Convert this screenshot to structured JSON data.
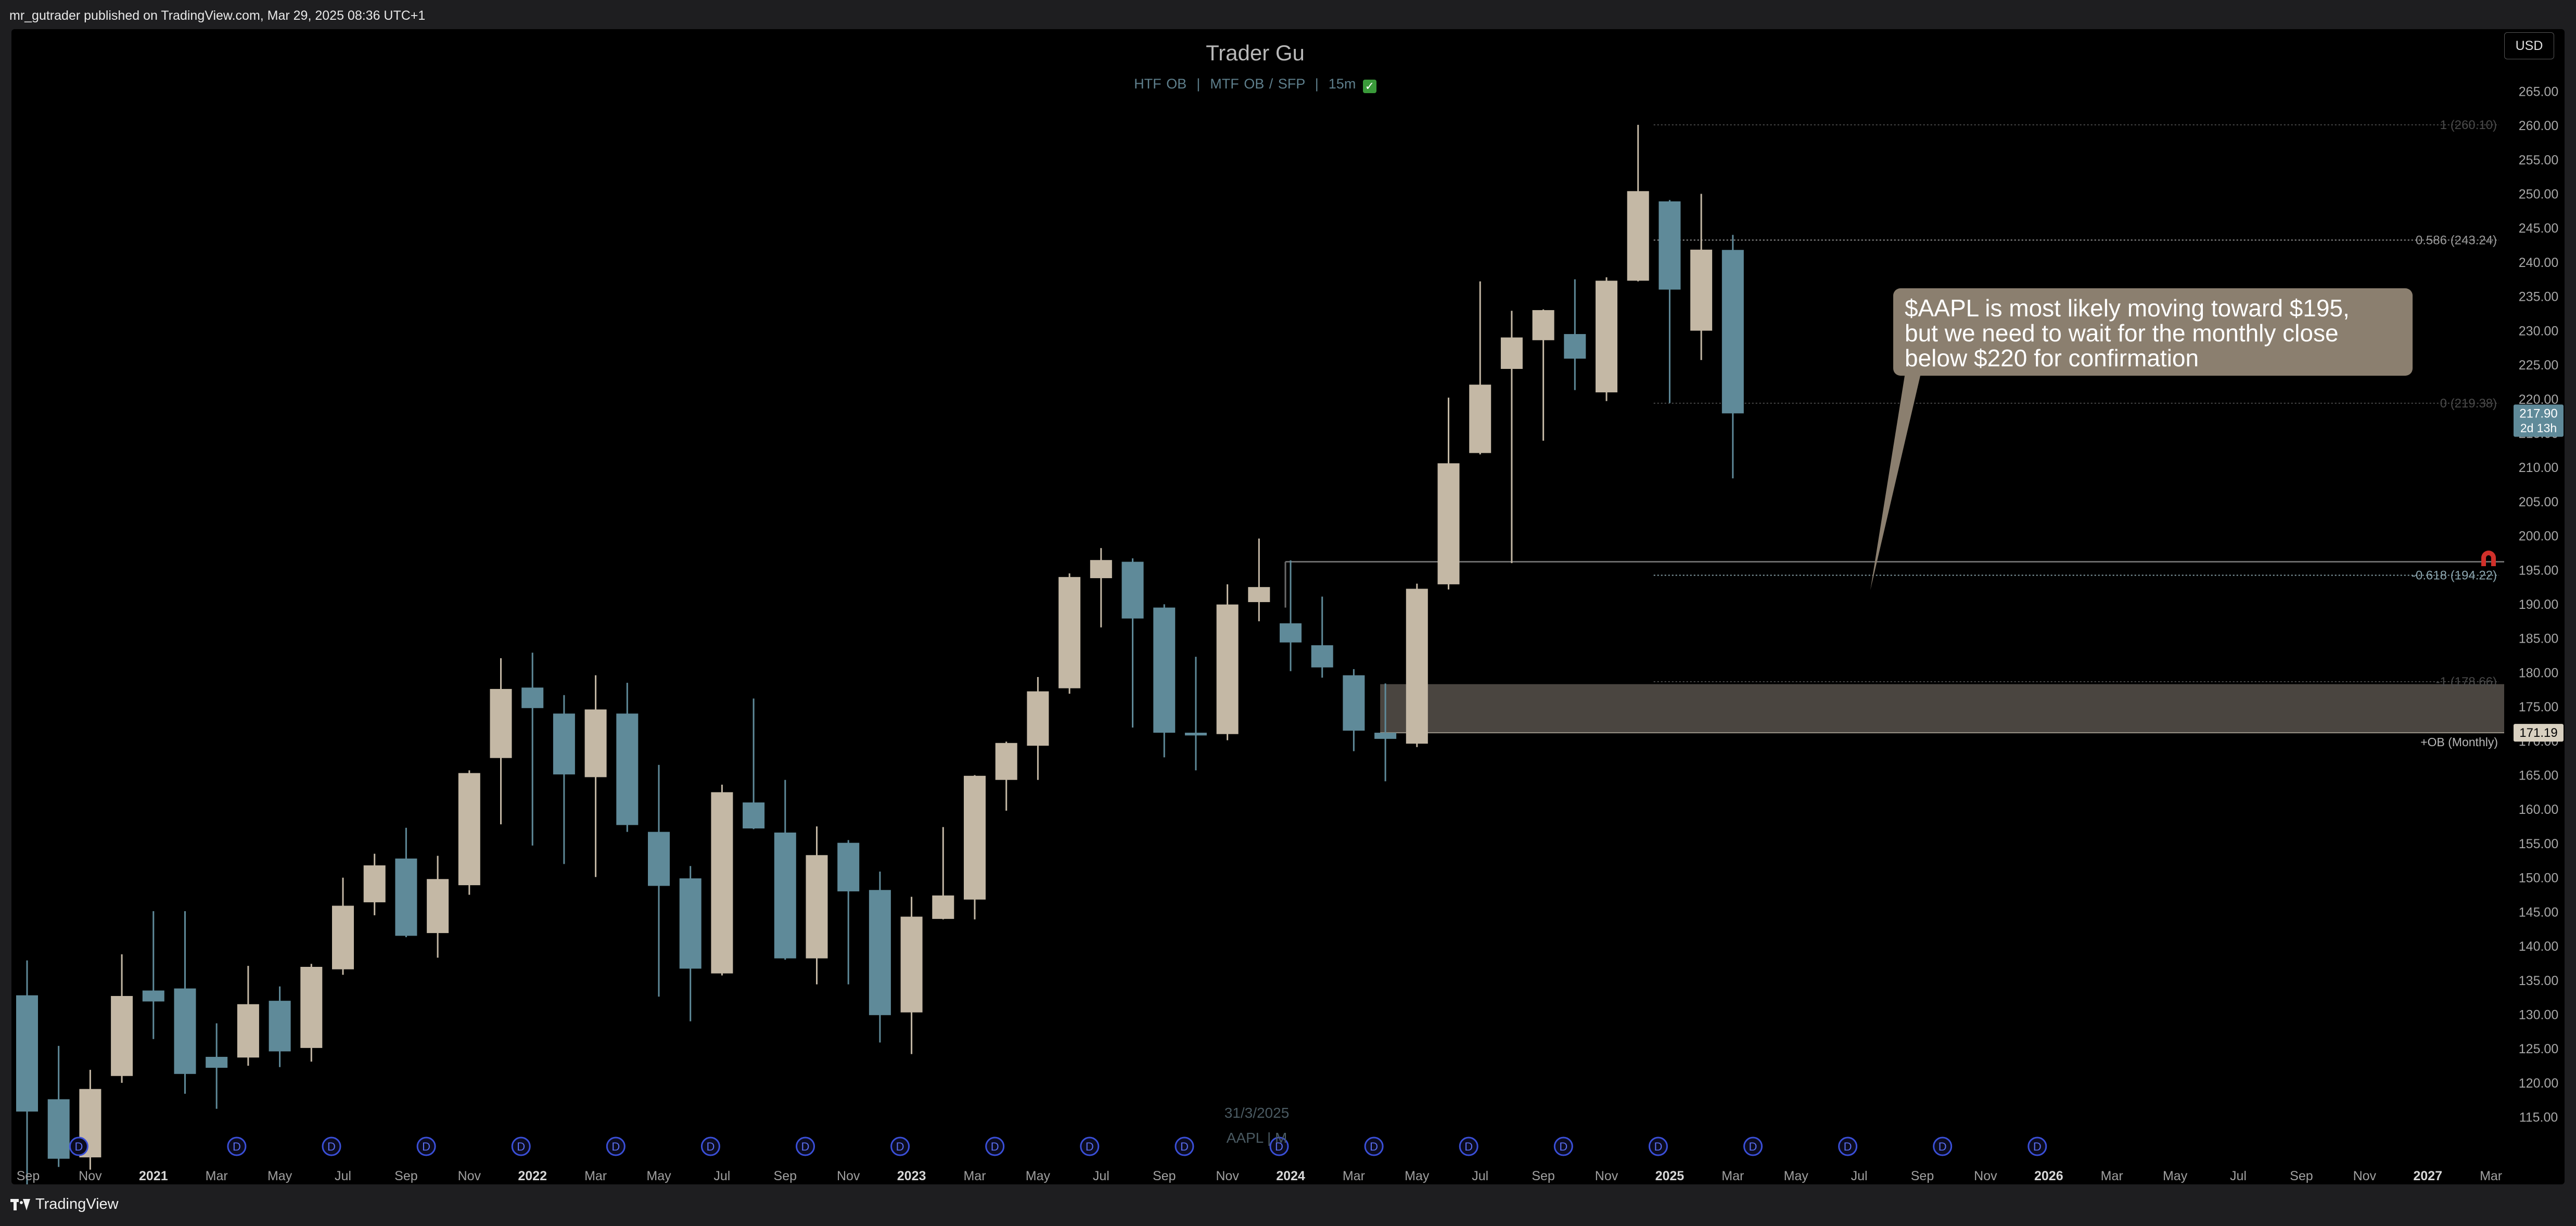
{
  "header": {
    "published_text": "mr_gutrader published on TradingView.com, Mar 29, 2025 08:36 UTC+1"
  },
  "chart": {
    "title": "Trader Gu",
    "subtitle_parts": [
      "HTF OB",
      "MTF OB / SFP",
      "15m"
    ],
    "separator": "|",
    "check_icon": "check-icon",
    "currency": "USD",
    "annotation_lines": [
      "$AAPL is most likely moving toward $195,",
      "but we need to wait for the monthly close",
      "below $220 for confirmation"
    ],
    "footer_date": "31/3/2025",
    "footer_symbol": "AAPL | M",
    "dividend_badge": "D",
    "colors": {
      "bull": "#c4b8a5",
      "bear": "#5f8a99",
      "zone": "#4a4540",
      "annotation": "#8b7f6f",
      "price_label": "#5f8a99"
    }
  },
  "footer": {
    "brand": "TradingView"
  },
  "chart_data": {
    "type": "candlestick",
    "symbol": "AAPL",
    "interval": "M",
    "ylim": [
      112,
      268
    ],
    "y_ticks": [
      115,
      120,
      125,
      130,
      135,
      140,
      145,
      150,
      155,
      160,
      165,
      170,
      175,
      180,
      185,
      190,
      195,
      200,
      205,
      210,
      215,
      220,
      225,
      230,
      235,
      240,
      245,
      250,
      255,
      260,
      265
    ],
    "x_labels": [
      {
        "i": 0,
        "text": "Sep"
      },
      {
        "i": 2,
        "text": "Nov"
      },
      {
        "i": 4,
        "text": "2021",
        "bold": true
      },
      {
        "i": 6,
        "text": "Mar"
      },
      {
        "i": 8,
        "text": "May"
      },
      {
        "i": 10,
        "text": "Jul"
      },
      {
        "i": 12,
        "text": "Sep"
      },
      {
        "i": 14,
        "text": "Nov"
      },
      {
        "i": 16,
        "text": "2022",
        "bold": true
      },
      {
        "i": 18,
        "text": "Mar"
      },
      {
        "i": 20,
        "text": "May"
      },
      {
        "i": 22,
        "text": "Jul"
      },
      {
        "i": 24,
        "text": "Sep"
      },
      {
        "i": 26,
        "text": "Nov"
      },
      {
        "i": 28,
        "text": "2023",
        "bold": true
      },
      {
        "i": 30,
        "text": "Mar"
      },
      {
        "i": 32,
        "text": "May"
      },
      {
        "i": 34,
        "text": "Jul"
      },
      {
        "i": 36,
        "text": "Sep"
      },
      {
        "i": 38,
        "text": "Nov"
      },
      {
        "i": 40,
        "text": "2024",
        "bold": true
      },
      {
        "i": 42,
        "text": "Mar"
      },
      {
        "i": 44,
        "text": "May"
      },
      {
        "i": 46,
        "text": "Jul"
      },
      {
        "i": 48,
        "text": "Sep"
      },
      {
        "i": 50,
        "text": "Nov"
      },
      {
        "i": 52,
        "text": "2025",
        "bold": true
      },
      {
        "i": 54,
        "text": "Mar"
      },
      {
        "i": 56,
        "text": "May"
      },
      {
        "i": 58,
        "text": "Jul"
      },
      {
        "i": 60,
        "text": "Sep"
      },
      {
        "i": 62,
        "text": "Nov"
      },
      {
        "i": 64,
        "text": "2026",
        "bold": true
      },
      {
        "i": 66,
        "text": "Mar"
      },
      {
        "i": 68,
        "text": "May"
      },
      {
        "i": 70,
        "text": "Jul"
      },
      {
        "i": 72,
        "text": "Sep"
      },
      {
        "i": 74,
        "text": "Nov"
      },
      {
        "i": 76,
        "text": "2027",
        "bold": true
      },
      {
        "i": 78,
        "text": "Mar"
      }
    ],
    "candles": [
      {
        "d": "2020-09",
        "o": 132.8,
        "h": 137.9,
        "l": 103.1,
        "c": 115.8
      },
      {
        "d": "2020-10",
        "o": 117.6,
        "h": 125.4,
        "l": 107.7,
        "c": 108.9
      },
      {
        "d": "2020-11",
        "o": 109.1,
        "h": 121.9,
        "l": 107.3,
        "c": 119.1
      },
      {
        "d": "2020-12",
        "o": 121.0,
        "h": 138.8,
        "l": 120.0,
        "c": 132.7
      },
      {
        "d": "2021-01",
        "o": 133.5,
        "h": 145.1,
        "l": 126.4,
        "c": 131.9
      },
      {
        "d": "2021-02",
        "o": 133.8,
        "h": 145.1,
        "l": 118.4,
        "c": 121.3
      },
      {
        "d": "2021-03",
        "o": 123.8,
        "h": 128.7,
        "l": 116.2,
        "c": 122.2
      },
      {
        "d": "2021-04",
        "o": 123.7,
        "h": 137.1,
        "l": 122.5,
        "c": 131.5
      },
      {
        "d": "2021-05",
        "o": 132.0,
        "h": 134.1,
        "l": 122.3,
        "c": 124.6
      },
      {
        "d": "2021-06",
        "o": 125.1,
        "h": 137.4,
        "l": 123.1,
        "c": 136.96
      },
      {
        "d": "2021-07",
        "o": 136.6,
        "h": 150.0,
        "l": 135.8,
        "c": 145.9
      },
      {
        "d": "2021-08",
        "o": 146.4,
        "h": 153.5,
        "l": 144.5,
        "c": 151.8
      },
      {
        "d": "2021-09",
        "o": 152.8,
        "h": 157.3,
        "l": 141.3,
        "c": 141.5
      },
      {
        "d": "2021-10",
        "o": 141.9,
        "h": 153.2,
        "l": 138.3,
        "c": 149.8
      },
      {
        "d": "2021-11",
        "o": 148.9,
        "h": 165.7,
        "l": 147.5,
        "c": 165.3
      },
      {
        "d": "2021-12",
        "o": 167.5,
        "h": 182.1,
        "l": 157.8,
        "c": 177.6
      },
      {
        "d": "2022-01",
        "o": 177.8,
        "h": 182.9,
        "l": 154.7,
        "c": 174.8
      },
      {
        "d": "2022-02",
        "o": 174.0,
        "h": 176.7,
        "l": 152.0,
        "c": 165.1
      },
      {
        "d": "2022-03",
        "o": 164.7,
        "h": 179.6,
        "l": 150.1,
        "c": 174.6
      },
      {
        "d": "2022-04",
        "o": 174.0,
        "h": 178.5,
        "l": 156.7,
        "c": 157.7
      },
      {
        "d": "2022-05",
        "o": 156.7,
        "h": 166.5,
        "l": 132.6,
        "c": 148.8
      },
      {
        "d": "2022-06",
        "o": 149.9,
        "h": 151.7,
        "l": 129.0,
        "c": 136.7
      },
      {
        "d": "2022-07",
        "o": 136.0,
        "h": 163.6,
        "l": 135.7,
        "c": 162.5
      },
      {
        "d": "2022-08",
        "o": 161.0,
        "h": 176.2,
        "l": 157.1,
        "c": 157.2
      },
      {
        "d": "2022-09",
        "o": 156.6,
        "h": 164.3,
        "l": 138.0,
        "c": 138.2
      },
      {
        "d": "2022-10",
        "o": 138.2,
        "h": 157.5,
        "l": 134.4,
        "c": 153.3
      },
      {
        "d": "2022-11",
        "o": 155.1,
        "h": 155.5,
        "l": 134.4,
        "c": 148.0
      },
      {
        "d": "2022-12",
        "o": 148.2,
        "h": 150.9,
        "l": 125.9,
        "c": 129.9
      },
      {
        "d": "2023-01",
        "o": 130.3,
        "h": 147.2,
        "l": 124.2,
        "c": 144.3
      },
      {
        "d": "2023-02",
        "o": 143.97,
        "h": 157.4,
        "l": 143.9,
        "c": 147.4
      },
      {
        "d": "2023-03",
        "o": 146.8,
        "h": 165.0,
        "l": 143.9,
        "c": 164.9
      },
      {
        "d": "2023-04",
        "o": 164.3,
        "h": 169.9,
        "l": 159.8,
        "c": 169.7
      },
      {
        "d": "2023-05",
        "o": 169.3,
        "h": 179.35,
        "l": 164.3,
        "c": 177.25
      },
      {
        "d": "2023-06",
        "o": 177.7,
        "h": 194.5,
        "l": 176.9,
        "c": 193.97
      },
      {
        "d": "2023-07",
        "o": 193.8,
        "h": 198.2,
        "l": 186.6,
        "c": 196.45
      },
      {
        "d": "2023-08",
        "o": 196.2,
        "h": 196.7,
        "l": 171.96,
        "c": 187.9
      },
      {
        "d": "2023-09",
        "o": 189.5,
        "h": 189.98,
        "l": 167.6,
        "c": 171.2
      },
      {
        "d": "2023-10",
        "o": 171.2,
        "h": 182.3,
        "l": 165.7,
        "c": 170.8
      },
      {
        "d": "2023-11",
        "o": 171.0,
        "h": 192.9,
        "l": 170.1,
        "c": 189.95
      },
      {
        "d": "2023-12",
        "o": 190.3,
        "h": 199.6,
        "l": 187.5,
        "c": 192.5
      },
      {
        "d": "2024-01",
        "o": 187.2,
        "h": 196.4,
        "l": 180.2,
        "c": 184.4
      },
      {
        "d": "2024-02",
        "o": 183.99,
        "h": 191.1,
        "l": 179.25,
        "c": 180.75
      },
      {
        "d": "2024-03",
        "o": 179.6,
        "h": 180.5,
        "l": 168.5,
        "c": 171.5
      },
      {
        "d": "2024-04",
        "o": 171.2,
        "h": 178.4,
        "l": 164.1,
        "c": 170.3
      },
      {
        "d": "2024-05",
        "o": 169.6,
        "h": 193.0,
        "l": 169.1,
        "c": 192.25
      },
      {
        "d": "2024-06",
        "o": 192.9,
        "h": 220.2,
        "l": 192.15,
        "c": 210.6
      },
      {
        "d": "2024-07",
        "o": 212.1,
        "h": 237.2,
        "l": 211.9,
        "c": 222.1
      },
      {
        "d": "2024-08",
        "o": 224.4,
        "h": 232.9,
        "l": 196.0,
        "c": 229.0
      },
      {
        "d": "2024-09",
        "o": 228.6,
        "h": 233.1,
        "l": 213.9,
        "c": 233.0
      },
      {
        "d": "2024-10",
        "o": 229.5,
        "h": 237.5,
        "l": 221.3,
        "c": 225.9
      },
      {
        "d": "2024-11",
        "o": 220.97,
        "h": 237.8,
        "l": 219.7,
        "c": 237.3
      },
      {
        "d": "2024-12",
        "o": 237.3,
        "h": 260.1,
        "l": 237.2,
        "c": 250.4
      },
      {
        "d": "2025-01",
        "o": 248.9,
        "h": 249.1,
        "l": 219.4,
        "c": 236.0
      },
      {
        "d": "2025-02",
        "o": 229.99,
        "h": 250.0,
        "l": 225.7,
        "c": 241.84
      },
      {
        "d": "2025-03",
        "o": 241.8,
        "h": 244.0,
        "l": 208.4,
        "c": 217.9
      }
    ],
    "fib_levels": [
      {
        "label": "1 (260.10)",
        "value": 260.1,
        "color": "#4a4a4a"
      },
      {
        "label": "0.586 (243.24)",
        "value": 243.24,
        "color": "#9a9a9a"
      },
      {
        "label": "0 (219.38)",
        "value": 219.38,
        "color": "#4a4a4a"
      },
      {
        "label": "-0.618 (194.22)",
        "value": 194.22,
        "color": "#8aa4ad"
      },
      {
        "label": "-1 (178.66)",
        "value": 178.66,
        "color": "#4a4a4a"
      }
    ],
    "horizontal_line": {
      "value": 196.2,
      "color": "#6b6b6b"
    },
    "order_block": {
      "label": "+OB (Monthly)",
      "top": 178.3,
      "bottom": 171.19
    },
    "price_labels": [
      {
        "value": 217.9,
        "text": "217.90",
        "sub": "2d 13h",
        "color": "#5f8a99"
      },
      {
        "value": 171.19,
        "text": "171.19",
        "color": "#d8d0c0"
      }
    ],
    "dividends_at": [
      2,
      7,
      10,
      13,
      16,
      19,
      22,
      25,
      28,
      31,
      34,
      37,
      40,
      43,
      46,
      49,
      52,
      55,
      58,
      61,
      64
    ]
  }
}
